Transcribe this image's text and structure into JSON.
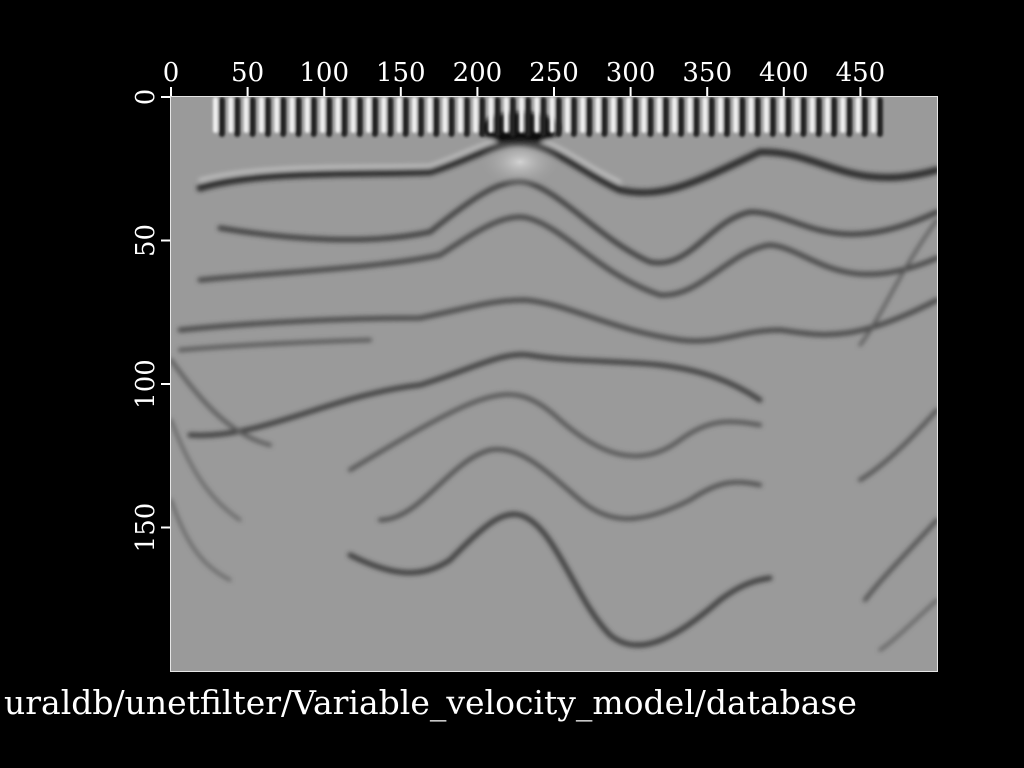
{
  "chart_data": {
    "type": "heatmap",
    "description_free": true,
    "colormap": "grayscale",
    "title": "",
    "xlabel": "",
    "ylabel": "",
    "x_axis_position": "top",
    "xlim": [
      0,
      500
    ],
    "ylim": [
      0,
      200
    ],
    "y_inverted": true,
    "x_ticks": [
      0,
      50,
      100,
      150,
      200,
      250,
      300,
      350,
      400,
      450
    ],
    "y_ticks": [
      0,
      50,
      100,
      150
    ],
    "grid": false,
    "source_array_x": [
      0,
      100,
      200,
      300,
      400,
      500
    ],
    "source_array_y_top": 0
  },
  "footer": {
    "path_text": "uraldb/unetfilter/Variable_velocity_model/database"
  },
  "colors": {
    "background": "#000000",
    "plot_base": "#9a9a9a",
    "text": "#ffffff"
  }
}
